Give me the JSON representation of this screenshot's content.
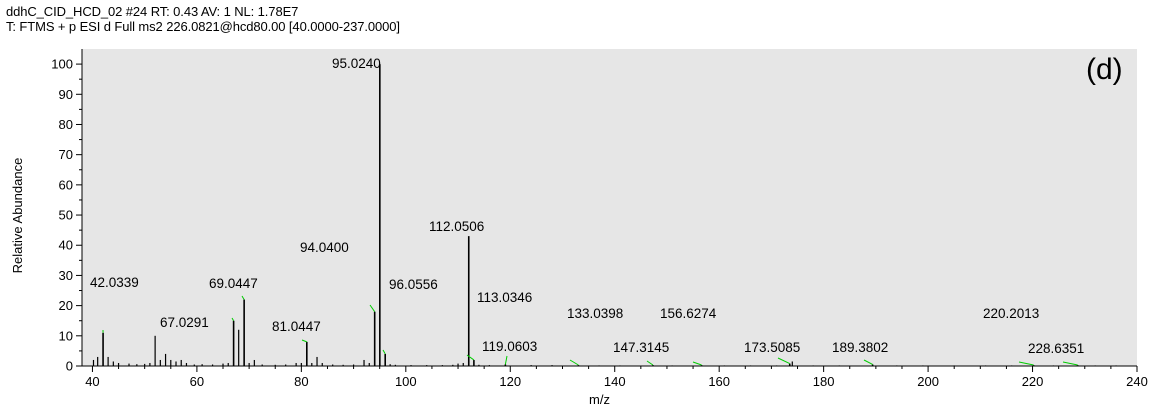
{
  "header": {
    "line1": "ddhC_CID_HCD_02 #24 RT: 0.43 AV: 1 NL: 1.78E7",
    "line2": "T: FTMS + p ESI d Full ms2 226.0821@hcd80.00 [40.0000-237.0000]"
  },
  "panel_label": "(d)",
  "colors": {
    "plot_background": "#e6e6e6",
    "peak": "#000000",
    "leader_line": "#00cc00"
  },
  "chart_data": {
    "type": "bar",
    "xlabel": "m/z",
    "ylabel": "Relative Abundance",
    "xlim": [
      38,
      240
    ],
    "ylim": [
      0,
      105
    ],
    "x_ticks": [
      40,
      60,
      80,
      100,
      120,
      140,
      160,
      180,
      200,
      220,
      240
    ],
    "y_ticks": [
      0,
      10,
      20,
      30,
      40,
      50,
      60,
      70,
      80,
      90,
      100
    ],
    "grid": false,
    "labeled_peaks": [
      {
        "mz": 42.0339,
        "label": "42.0339",
        "intensity": 11
      },
      {
        "mz": 67.0291,
        "label": "67.0291",
        "intensity": 15
      },
      {
        "mz": 69.0447,
        "label": "69.0447",
        "intensity": 22
      },
      {
        "mz": 81.0447,
        "label": "81.0447",
        "intensity": 8
      },
      {
        "mz": 94.04,
        "label": "94.0400",
        "intensity": 18
      },
      {
        "mz": 95.024,
        "label": "95.0240",
        "intensity": 100
      },
      {
        "mz": 96.0556,
        "label": "96.0556",
        "intensity": 4
      },
      {
        "mz": 112.0506,
        "label": "112.0506",
        "intensity": 43
      },
      {
        "mz": 113.0346,
        "label": "113.0346",
        "intensity": 2
      },
      {
        "mz": 119.0603,
        "label": "119.0603",
        "intensity": 0.5
      },
      {
        "mz": 133.0398,
        "label": "133.0398",
        "intensity": 0.3
      },
      {
        "mz": 147.3145,
        "label": "147.3145",
        "intensity": 0.3
      },
      {
        "mz": 156.6274,
        "label": "156.6274",
        "intensity": 0.3
      },
      {
        "mz": 173.5085,
        "label": "173.5085",
        "intensity": 0.8
      },
      {
        "mz": 189.3802,
        "label": "189.3802",
        "intensity": 0.5
      },
      {
        "mz": 220.2013,
        "label": "220.2013",
        "intensity": 0.3
      },
      {
        "mz": 228.6351,
        "label": "228.6351",
        "intensity": 0.3
      }
    ],
    "minor_peaks": [
      {
        "mz": 40.2,
        "intensity": 2
      },
      {
        "mz": 41.0,
        "intensity": 3
      },
      {
        "mz": 43.0,
        "intensity": 3
      },
      {
        "mz": 44.0,
        "intensity": 1.5
      },
      {
        "mz": 45.0,
        "intensity": 1
      },
      {
        "mz": 47.0,
        "intensity": 0.8
      },
      {
        "mz": 48.5,
        "intensity": 0.6
      },
      {
        "mz": 50.0,
        "intensity": 0.7
      },
      {
        "mz": 51.0,
        "intensity": 1
      },
      {
        "mz": 52.0,
        "intensity": 10
      },
      {
        "mz": 53.0,
        "intensity": 2
      },
      {
        "mz": 54.0,
        "intensity": 4
      },
      {
        "mz": 55.0,
        "intensity": 2
      },
      {
        "mz": 56.0,
        "intensity": 1.5
      },
      {
        "mz": 57.0,
        "intensity": 2
      },
      {
        "mz": 58.0,
        "intensity": 1
      },
      {
        "mz": 59.5,
        "intensity": 0.5
      },
      {
        "mz": 61.0,
        "intensity": 0.6
      },
      {
        "mz": 63.0,
        "intensity": 0.5
      },
      {
        "mz": 65.0,
        "intensity": 0.8
      },
      {
        "mz": 66.0,
        "intensity": 1
      },
      {
        "mz": 68.0,
        "intensity": 12
      },
      {
        "mz": 70.0,
        "intensity": 1
      },
      {
        "mz": 71.0,
        "intensity": 2
      },
      {
        "mz": 72.5,
        "intensity": 0.5
      },
      {
        "mz": 75.0,
        "intensity": 0.4
      },
      {
        "mz": 77.0,
        "intensity": 0.5
      },
      {
        "mz": 79.0,
        "intensity": 1
      },
      {
        "mz": 80.0,
        "intensity": 1
      },
      {
        "mz": 82.0,
        "intensity": 1
      },
      {
        "mz": 83.0,
        "intensity": 3
      },
      {
        "mz": 84.0,
        "intensity": 1
      },
      {
        "mz": 86.0,
        "intensity": 0.5
      },
      {
        "mz": 88.0,
        "intensity": 0.4
      },
      {
        "mz": 90.0,
        "intensity": 0.5
      },
      {
        "mz": 92.0,
        "intensity": 2
      },
      {
        "mz": 93.0,
        "intensity": 1
      },
      {
        "mz": 97.0,
        "intensity": 0.6
      },
      {
        "mz": 98.0,
        "intensity": 0.4
      },
      {
        "mz": 101.0,
        "intensity": 0.3
      },
      {
        "mz": 104.0,
        "intensity": 0.3
      },
      {
        "mz": 107.0,
        "intensity": 0.3
      },
      {
        "mz": 109.0,
        "intensity": 0.4
      },
      {
        "mz": 110.0,
        "intensity": 0.8
      },
      {
        "mz": 111.0,
        "intensity": 1
      },
      {
        "mz": 114.0,
        "intensity": 0.4
      },
      {
        "mz": 116.0,
        "intensity": 0.3
      },
      {
        "mz": 124.0,
        "intensity": 0.3
      },
      {
        "mz": 128.0,
        "intensity": 0.3
      },
      {
        "mz": 137.0,
        "intensity": 0.2
      },
      {
        "mz": 141.0,
        "intensity": 0.2
      },
      {
        "mz": 151.0,
        "intensity": 0.2
      },
      {
        "mz": 161.0,
        "intensity": 0.2
      },
      {
        "mz": 166.0,
        "intensity": 0.2
      },
      {
        "mz": 171.0,
        "intensity": 0.2
      },
      {
        "mz": 174.0,
        "intensity": 1.5
      },
      {
        "mz": 178.0,
        "intensity": 0.2
      },
      {
        "mz": 183.0,
        "intensity": 0.2
      },
      {
        "mz": 194.0,
        "intensity": 0.2
      },
      {
        "mz": 199.0,
        "intensity": 0.2
      },
      {
        "mz": 205.0,
        "intensity": 0.2
      },
      {
        "mz": 211.0,
        "intensity": 0.2
      },
      {
        "mz": 216.0,
        "intensity": 0.2
      },
      {
        "mz": 224.0,
        "intensity": 0.2
      },
      {
        "mz": 232.0,
        "intensity": 0.2
      },
      {
        "mz": 236.0,
        "intensity": 0.2
      }
    ]
  }
}
